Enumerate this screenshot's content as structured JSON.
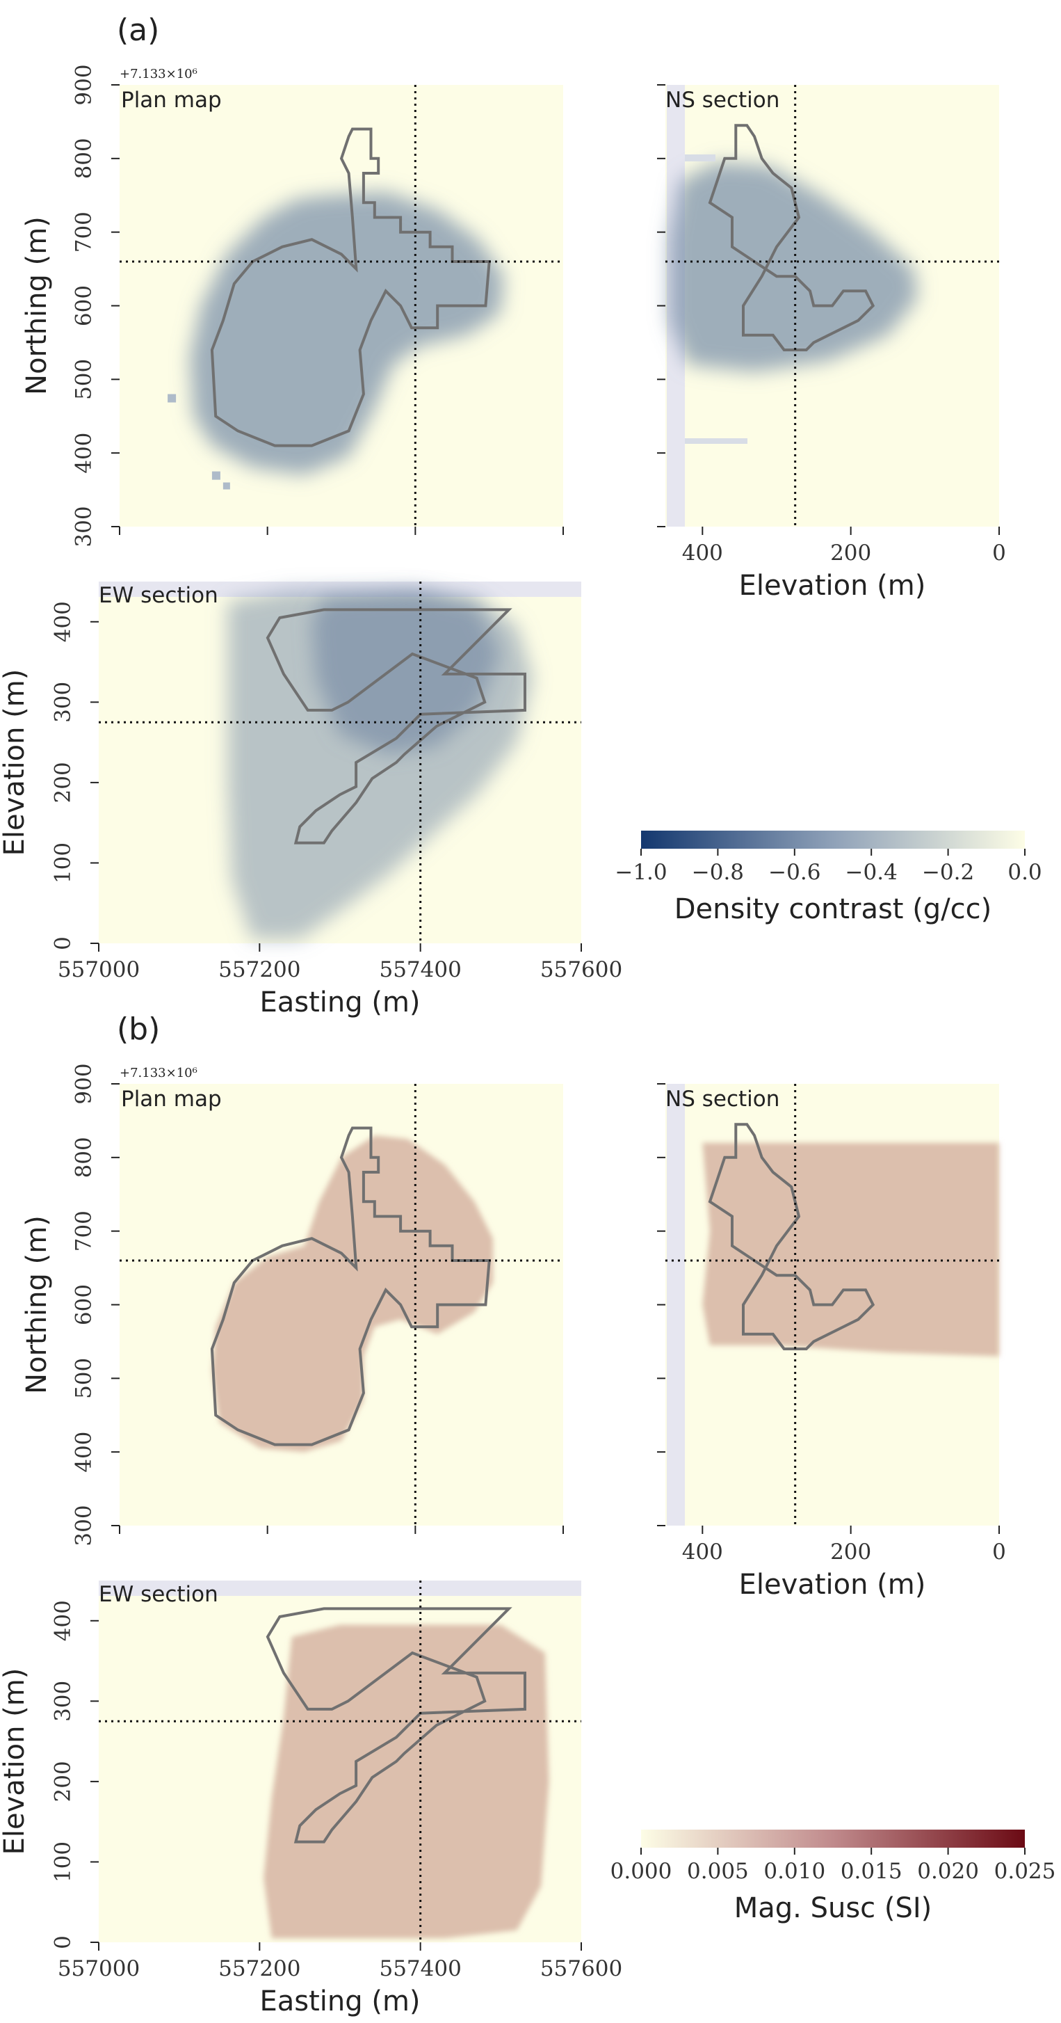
{
  "panels": [
    {
      "letter": "(a)",
      "plan_label": "Plan map",
      "ns_label": "NS section",
      "ew_label": "EW section",
      "northing_offset": "+7.133×10⁶",
      "colorbar": {
        "label": "Density contrast (g/cc)",
        "ticks": [
          "−1.0",
          "−0.8",
          "−0.6",
          "−0.4",
          "−0.2",
          "0.0"
        ],
        "min": -1.0,
        "max": 0.0,
        "colors": [
          "#14386f",
          "#8fa1b8",
          "#fdfde6"
        ]
      },
      "fill_color": "#7f93ab",
      "fill_opacity": 0.75
    },
    {
      "letter": "(b)",
      "plan_label": "Plan map",
      "ns_label": "NS section",
      "ew_label": "EW section",
      "northing_offset": "+7.133×10⁶",
      "colorbar": {
        "label": "Mag. Susc (SI)",
        "ticks": [
          "0.000",
          "0.005",
          "0.010",
          "0.015",
          "0.020",
          "0.025"
        ],
        "min": 0.0,
        "max": 0.025,
        "colors": [
          "#fdfde6",
          "#c08a8c",
          "#6b0a14"
        ]
      },
      "fill_color": "#d8b8a6",
      "fill_opacity": 0.9
    }
  ],
  "axes": {
    "plan_y_label": "Northing (m)",
    "plan_y_ticks": [
      "300",
      "400",
      "500",
      "600",
      "700",
      "800",
      "900"
    ],
    "ns_x_label": "Elevation (m)",
    "ns_x_ticks": [
      "400",
      "200",
      "0"
    ],
    "ew_y_label": "Elevation (m)",
    "ew_y_ticks": [
      "0",
      "100",
      "200",
      "300",
      "400"
    ],
    "ew_x_label": "Easting (m)",
    "ew_x_ticks": [
      "557000",
      "557200",
      "557400",
      "557600"
    ]
  },
  "chart_data": [
    {
      "type": "heatmap",
      "title": "",
      "panel": "(a)",
      "quantity": "Density contrast (g/cc)",
      "color_range": [
        -1.0,
        0.0
      ],
      "views": [
        {
          "name": "Plan map",
          "xlabel": "",
          "ylabel": "Northing (m)",
          "xlim": [
            557000,
            557600
          ],
          "ylim": [
            7133300,
            7133900
          ],
          "crosshair": {
            "easting": 557400,
            "northing": 7133660
          }
        },
        {
          "name": "NS section",
          "xlabel": "Elevation (m)",
          "xlim": [
            450,
            0
          ],
          "ylim": [
            7133300,
            7133900
          ],
          "crosshair": {
            "elevation": 275,
            "northing": 7133660
          }
        },
        {
          "name": "EW section",
          "xlabel": "Easting (m)",
          "ylabel": "Elevation (m)",
          "xlim": [
            557000,
            557600
          ],
          "ylim": [
            0,
            450
          ],
          "crosshair": {
            "easting": 557400,
            "elevation": 275
          }
        }
      ]
    },
    {
      "type": "heatmap",
      "title": "",
      "panel": "(b)",
      "quantity": "Mag. Susc (SI)",
      "color_range": [
        0.0,
        0.025
      ],
      "views": [
        {
          "name": "Plan map",
          "xlabel": "",
          "ylabel": "Northing (m)",
          "xlim": [
            557000,
            557600
          ],
          "ylim": [
            7133300,
            7133900
          ],
          "crosshair": {
            "easting": 557400,
            "northing": 7133660
          }
        },
        {
          "name": "NS section",
          "xlabel": "Elevation (m)",
          "xlim": [
            450,
            0
          ],
          "ylim": [
            7133300,
            7133900
          ],
          "crosshair": {
            "elevation": 275,
            "northing": 7133660
          }
        },
        {
          "name": "EW section",
          "xlabel": "Easting (m)",
          "ylabel": "Elevation (m)",
          "xlim": [
            557000,
            557600
          ],
          "ylim": [
            0,
            450
          ],
          "crosshair": {
            "easting": 557400,
            "elevation": 275
          }
        }
      ]
    }
  ]
}
